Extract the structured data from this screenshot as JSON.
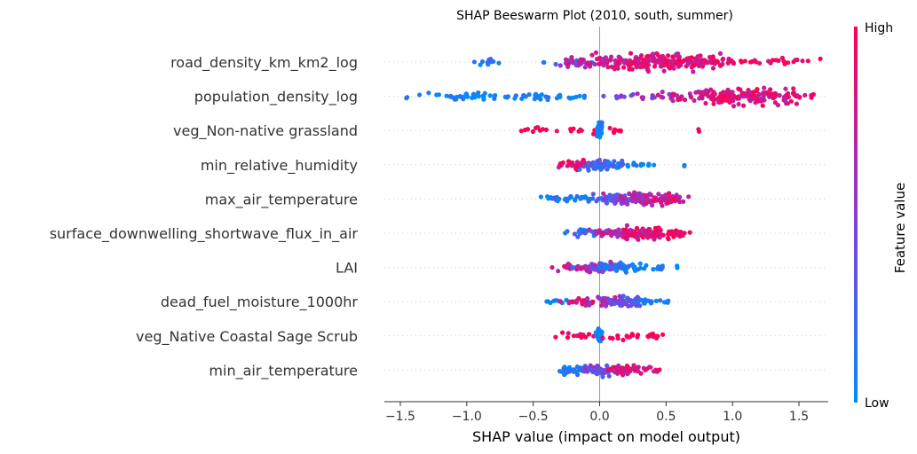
{
  "chart_data": {
    "type": "scatter",
    "subtype": "beeswarm",
    "title": "SHAP Beeswarm Plot (2010, south, summer)",
    "xlabel": "SHAP value (impact on model output)",
    "xlim": [
      -1.62,
      1.72
    ],
    "xticks": [
      -1.5,
      -1.0,
      -0.5,
      0.0,
      0.5,
      1.0,
      1.5
    ],
    "xtick_labels": [
      "−1.5",
      "−1.0",
      "−0.5",
      "0.0",
      "0.5",
      "1.0",
      "1.5"
    ],
    "colorbar": {
      "label": "Feature value",
      "high_label": "High",
      "low_label": "Low",
      "low_color": "#008bfb",
      "mid_color": "#8a3bd8",
      "high_color": "#ff0052"
    },
    "features": [
      {
        "name": "road_density_km_km2_log",
        "clusters": [
          [
            -0.85,
            0.05,
            0.06,
            0.15
          ],
          [
            -0.42,
            0.02,
            0.01,
            0.0
          ],
          [
            -0.15,
            0.08,
            0.1,
            0.3
          ],
          [
            0.05,
            0.15,
            0.25,
            0.65
          ],
          [
            0.3,
            0.2,
            0.5,
            0.8
          ],
          [
            0.6,
            0.2,
            0.55,
            0.85
          ],
          [
            0.95,
            0.25,
            0.2,
            0.9
          ],
          [
            1.35,
            0.15,
            0.05,
            0.95
          ]
        ]
      },
      {
        "name": "population_density_log",
        "clusters": [
          [
            -1.45,
            0.01,
            0.01,
            0.0
          ],
          [
            -1.1,
            0.15,
            0.15,
            0.05
          ],
          [
            -0.75,
            0.2,
            0.15,
            0.05
          ],
          [
            -0.3,
            0.15,
            0.08,
            0.05
          ],
          [
            0.2,
            0.12,
            0.08,
            0.5
          ],
          [
            0.6,
            0.2,
            0.2,
            0.75
          ],
          [
            1.1,
            0.2,
            0.8,
            0.85
          ],
          [
            1.45,
            0.08,
            0.05,
            0.9
          ]
        ]
      },
      {
        "name": "veg_Non-native grassland",
        "clusters": [
          [
            -0.45,
            0.08,
            0.06,
            1.0
          ],
          [
            -0.15,
            0.08,
            0.05,
            1.0
          ],
          [
            0.0,
            0.01,
            0.35,
            0.02
          ],
          [
            0.12,
            0.05,
            0.05,
            1.0
          ],
          [
            0.75,
            0.01,
            0.01,
            1.0
          ]
        ]
      },
      {
        "name": "min_relative_humidity",
        "clusters": [
          [
            -0.2,
            0.06,
            0.18,
            0.9
          ],
          [
            0.0,
            0.06,
            0.25,
            0.3
          ],
          [
            0.15,
            0.05,
            0.08,
            0.2
          ],
          [
            0.3,
            0.06,
            0.05,
            0.05
          ],
          [
            0.65,
            0.01,
            0.01,
            0.0
          ]
        ]
      },
      {
        "name": "max_air_temperature",
        "clusters": [
          [
            -0.25,
            0.1,
            0.15,
            0.1
          ],
          [
            0.05,
            0.08,
            0.2,
            0.25
          ],
          [
            0.25,
            0.1,
            0.3,
            0.55
          ],
          [
            0.45,
            0.1,
            0.3,
            0.75
          ],
          [
            0.58,
            0.04,
            0.05,
            0.85
          ]
        ]
      },
      {
        "name": "surface_downwelling_shortwave_flux_in_air",
        "clusters": [
          [
            -0.1,
            0.08,
            0.15,
            0.2
          ],
          [
            0.1,
            0.08,
            0.2,
            0.7
          ],
          [
            0.3,
            0.1,
            0.35,
            0.85
          ],
          [
            0.5,
            0.08,
            0.2,
            0.9
          ],
          [
            0.6,
            0.03,
            0.03,
            0.95
          ]
        ]
      },
      {
        "name": "LAI",
        "clusters": [
          [
            -0.2,
            0.08,
            0.15,
            0.8
          ],
          [
            0.0,
            0.06,
            0.25,
            0.5
          ],
          [
            0.15,
            0.08,
            0.2,
            0.1
          ],
          [
            0.4,
            0.1,
            0.1,
            0.05
          ],
          [
            -0.2,
            0.01,
            0.01,
            0.0
          ]
        ]
      },
      {
        "name": "dead_fuel_moisture_1000hr",
        "clusters": [
          [
            -0.35,
            0.06,
            0.05,
            0.05
          ],
          [
            -0.15,
            0.08,
            0.12,
            0.85
          ],
          [
            0.05,
            0.06,
            0.2,
            0.6
          ],
          [
            0.2,
            0.06,
            0.25,
            0.35
          ],
          [
            0.35,
            0.06,
            0.1,
            0.1
          ],
          [
            0.5,
            0.02,
            0.02,
            0.0
          ]
        ]
      },
      {
        "name": "veg_Native Coastal Sage Scrub",
        "clusters": [
          [
            -0.2,
            0.08,
            0.08,
            1.0
          ],
          [
            0.0,
            0.01,
            0.35,
            0.02
          ],
          [
            0.25,
            0.1,
            0.1,
            1.0
          ],
          [
            0.42,
            0.03,
            0.04,
            1.0
          ]
        ]
      },
      {
        "name": "min_air_temperature",
        "clusters": [
          [
            -0.2,
            0.06,
            0.15,
            0.1
          ],
          [
            0.0,
            0.06,
            0.25,
            0.4
          ],
          [
            0.2,
            0.08,
            0.25,
            0.85
          ],
          [
            0.4,
            0.03,
            0.05,
            0.9
          ]
        ]
      }
    ]
  }
}
